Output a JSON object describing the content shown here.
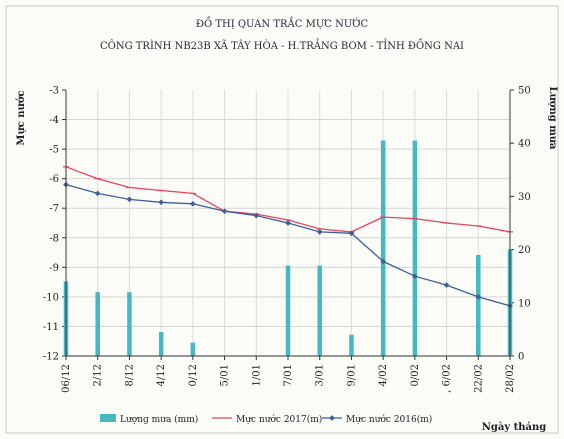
{
  "chart_data": {
    "type": "bar",
    "title": "ĐỒ THỊ QUAN TRẮC MỰC NƯỚC",
    "subtitle": "CÔNG TRÌNH NB23B XÃ TÂY HÒA - H.TRẢNG BOM - TỈNH ĐỒNG NAI",
    "ylabel_left": "Mực nước",
    "ylabel_right": "Lượng mưa",
    "xlabel": "Ngày tháng",
    "ylim_left": [
      -12,
      -3
    ],
    "ylim_right": [
      0,
      50
    ],
    "left_ticks": [
      "-3",
      "-4",
      "-5",
      "-6",
      "-7",
      "-8",
      "-9",
      "-10",
      "-11",
      "-12"
    ],
    "right_ticks": [
      "0",
      "10",
      "20",
      "30",
      "40",
      "50"
    ],
    "categories": [
      "06/12",
      "2/12",
      "8/12",
      "4/12",
      "0/12",
      "5/01",
      "1/01",
      "7/01",
      "3/01",
      "9/01",
      "4/02",
      "0/02",
      ", 6/02",
      "22/02",
      "28/02"
    ],
    "category_positions": [
      0,
      2,
      4,
      6,
      8,
      10,
      12,
      14,
      16,
      18,
      20,
      22,
      24,
      26,
      28
    ],
    "grid": true,
    "legend_position": "bottom",
    "series": [
      {
        "name": "Lượng mưa (mm)",
        "kind": "bar",
        "axis": "right",
        "color": "#45b8c6",
        "x": [
          0,
          2,
          4,
          6,
          8,
          14,
          16,
          18,
          20,
          22,
          26,
          28
        ],
        "values": [
          14,
          12,
          12,
          4.5,
          2.5,
          17,
          17,
          4,
          40.5,
          40.5,
          19,
          20
        ]
      },
      {
        "name": "Mực nước 2017(m)",
        "kind": "line",
        "axis": "left",
        "color": "#e4475f",
        "x": [
          0,
          2,
          4,
          6,
          8,
          10,
          12,
          14,
          16,
          18,
          20,
          22,
          24,
          26,
          28
        ],
        "values": [
          -5.6,
          -6.0,
          -6.3,
          -6.4,
          -6.5,
          -7.1,
          -7.2,
          -7.4,
          -7.7,
          -7.8,
          -7.3,
          -7.35,
          -7.5,
          -7.6,
          -7.8
        ]
      },
      {
        "name": "Mực nước 2016(m)",
        "kind": "line",
        "axis": "left",
        "color": "#3f5f96",
        "x": [
          0,
          2,
          4,
          6,
          8,
          10,
          12,
          14,
          16,
          18,
          20,
          22,
          24,
          26,
          28
        ],
        "values": [
          -6.2,
          -6.5,
          -6.7,
          -6.8,
          -6.85,
          -7.1,
          -7.25,
          -7.5,
          -7.8,
          -7.85,
          -8.8,
          -9.3,
          -9.6,
          -10.0,
          -10.3
        ]
      }
    ]
  }
}
